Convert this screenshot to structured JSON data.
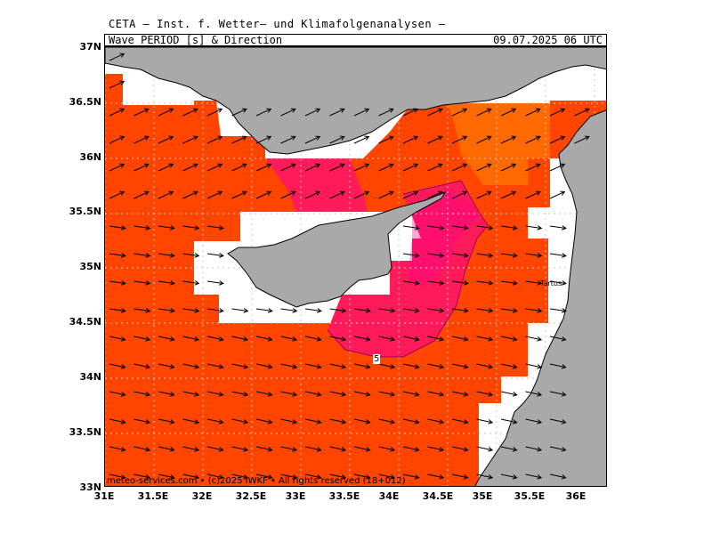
{
  "title": "CETA – Inst. f. Wetter– und Klimafolgenanalysen –",
  "variable_label": "Wave_PERIOD_[s]_&_Direction",
  "valid_time": "09.07.2025 06 UTC",
  "footer": "meteo-services.com • (c)2025 IWKF • All rights reserved (18+012)",
  "city_label": "Tartus",
  "contour_label": "5",
  "lat_labels": [
    "37N",
    "36.5N",
    "36N",
    "35.5N",
    "35N",
    "34.5N",
    "34N",
    "33.5N",
    "33N"
  ],
  "lon_labels": [
    "31E",
    "31.5E",
    "32E",
    "32.5E",
    "33E",
    "33.5E",
    "34E",
    "34.5E",
    "35E",
    "35.5E",
    "36E"
  ],
  "colors": {
    "period_4_5": "#ff4500",
    "period_5_6": "#ff1a5a",
    "period_3_4": "#ff6a00",
    "land": "#a9a9a9",
    "sea_nodata": "#ffffff"
  },
  "arrow_direction": "east-northeast"
}
